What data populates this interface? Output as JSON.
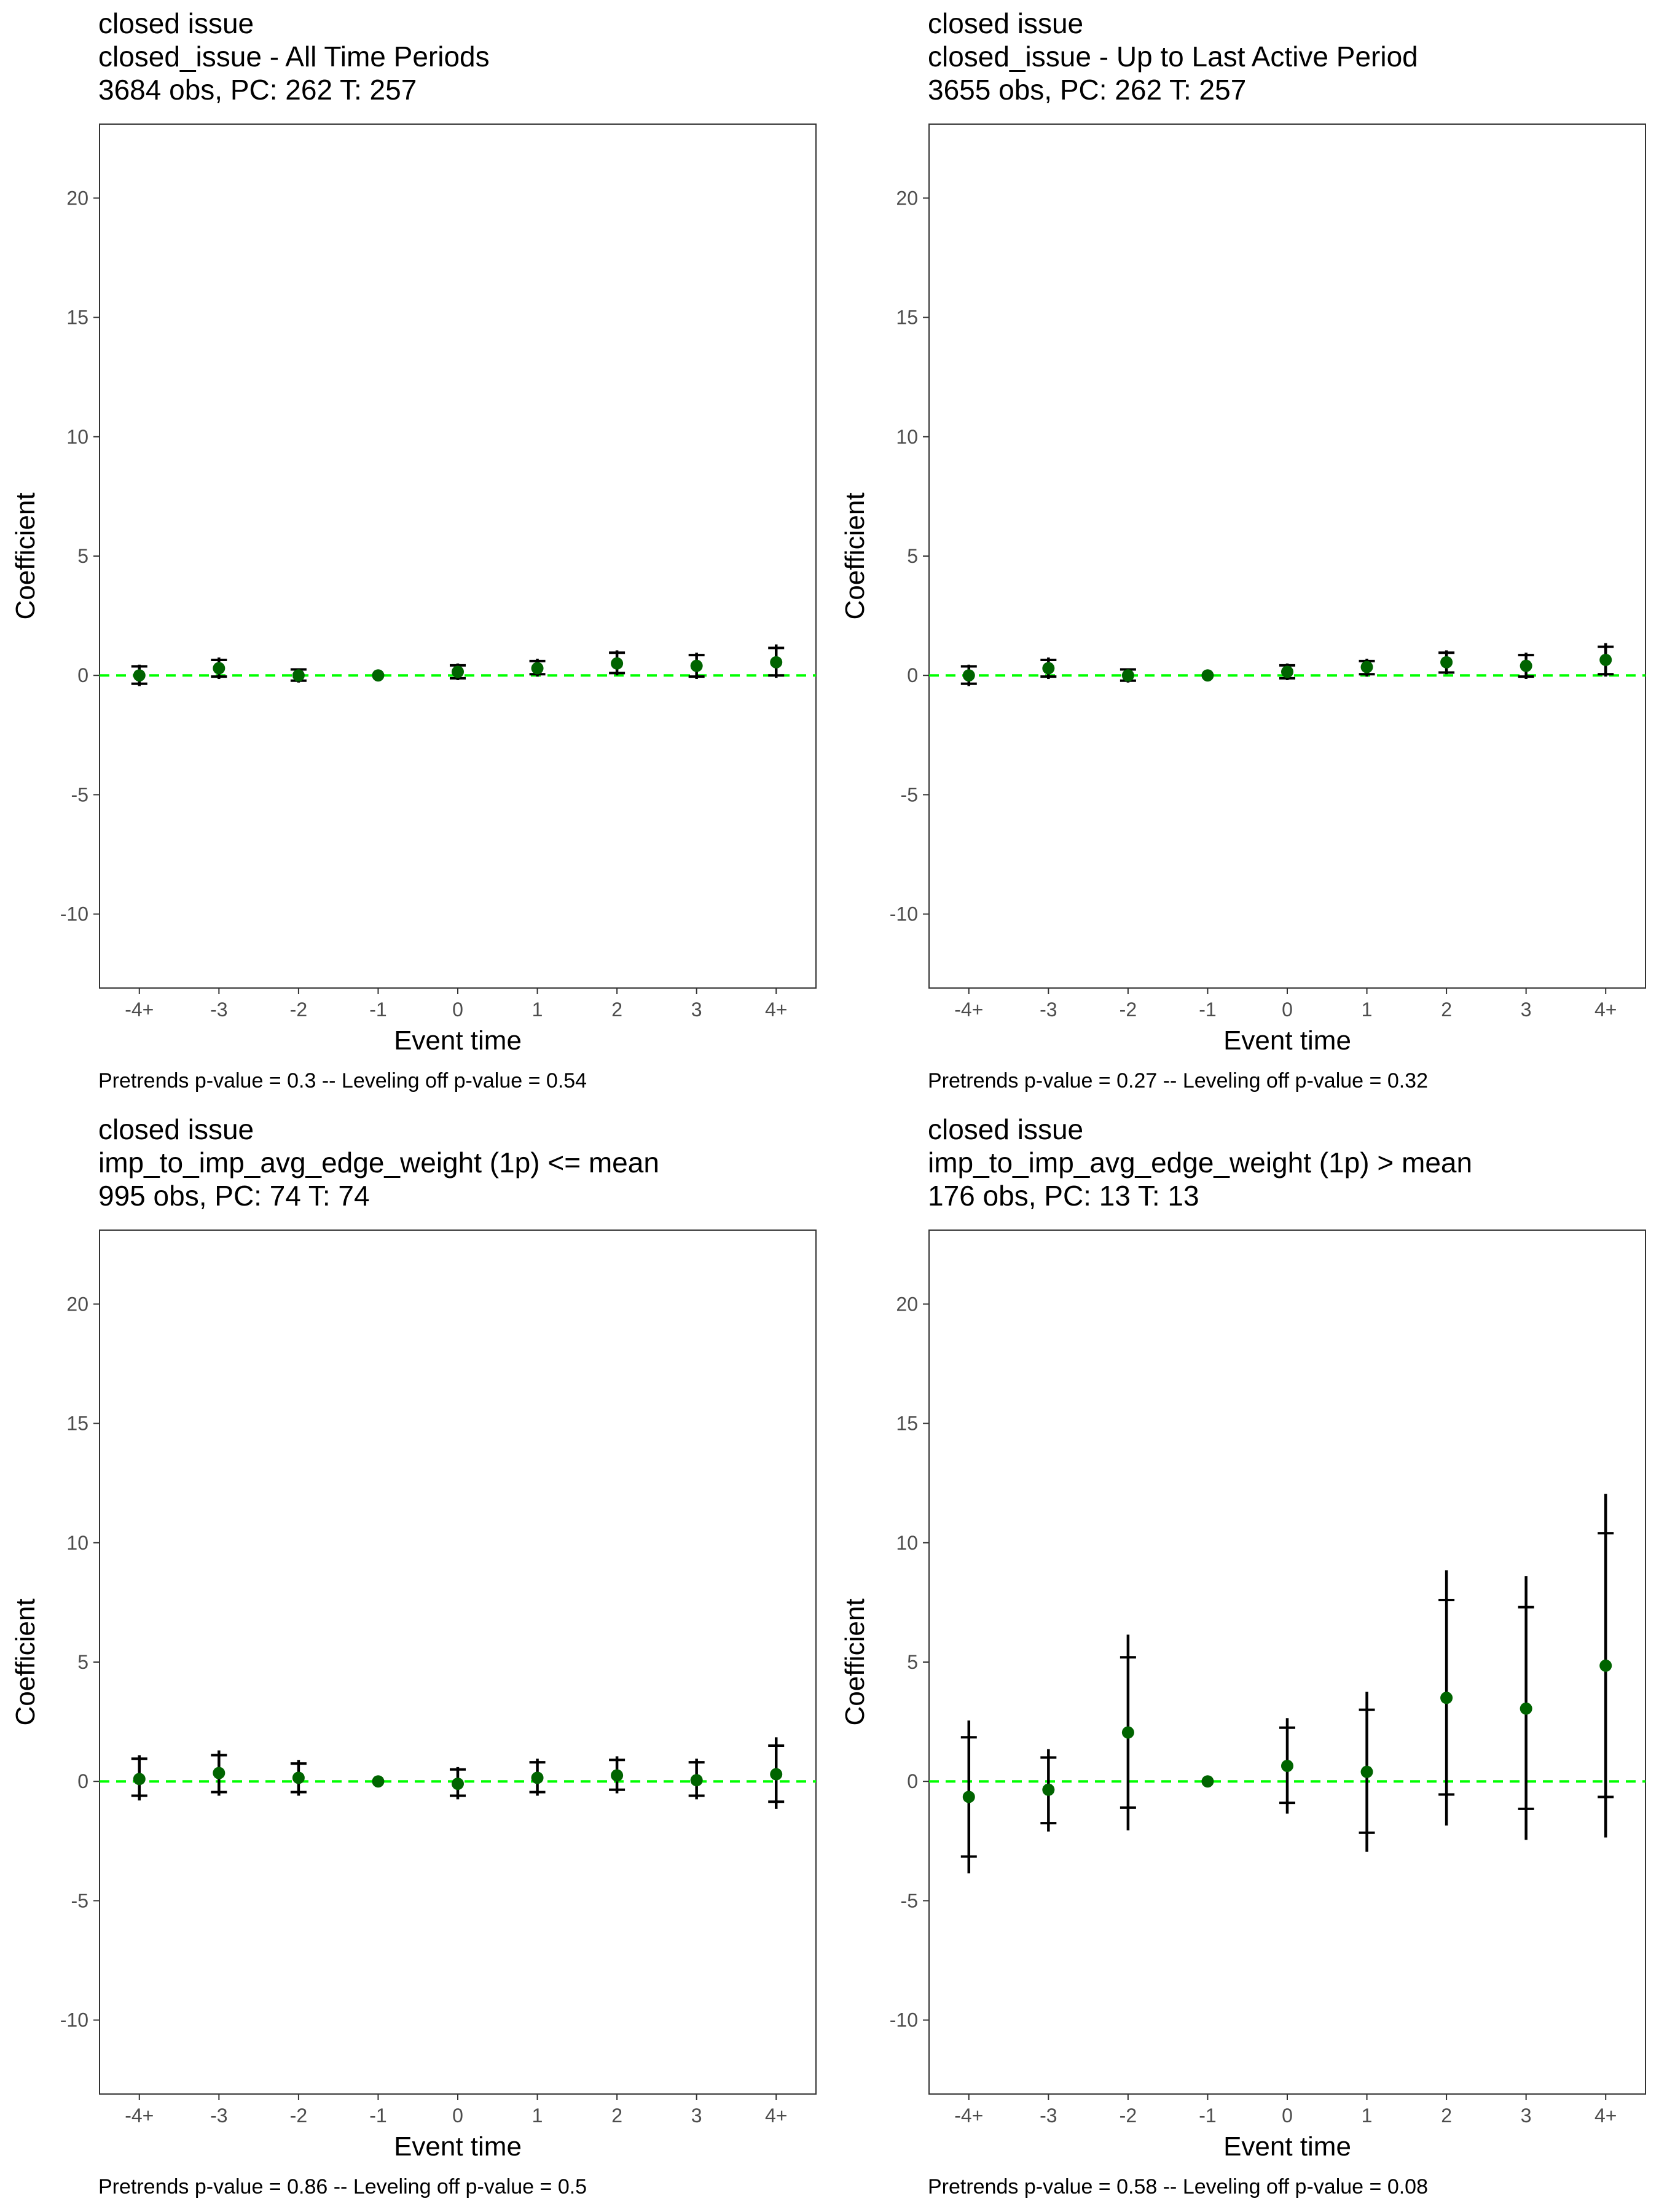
{
  "figure": {
    "colors": {
      "point": "#006400",
      "errorbar": "#000000",
      "zero_line": "#00ff00",
      "panel_border": "#333333",
      "tick_text": "#4d4d4d"
    }
  },
  "chart_data": [
    {
      "type": "scatter",
      "title": "closed issue",
      "subtitle": "closed_issue - All Time Periods",
      "sample_info": "3684 obs, PC: 262 T: 257",
      "xlabel": "Event time",
      "ylabel": "Coefficient",
      "caption": "Pretrends p-value = 0.3 -- Leveling off p-value = 0.54",
      "categories": [
        "-4+",
        "-3",
        "-2",
        "-1",
        "0",
        "1",
        "2",
        "3",
        "4+"
      ],
      "ylim": [
        -13.1,
        23.1
      ],
      "yticks": [
        -10,
        -5,
        0,
        5,
        10,
        15,
        20
      ],
      "ytick_labels": [
        "-10",
        "-5",
        "0",
        "5",
        "10",
        "15",
        "20"
      ],
      "grid": false,
      "reference_line": 0,
      "estimates": [
        0.0,
        0.3,
        0.0,
        0.0,
        0.15,
        0.3,
        0.5,
        0.4,
        0.55
      ],
      "ci95_low": [
        -0.45,
        -0.15,
        -0.3,
        0.0,
        -0.2,
        -0.05,
        0.0,
        -0.15,
        -0.1
      ],
      "ci95_high": [
        0.45,
        0.75,
        0.3,
        0.0,
        0.5,
        0.7,
        1.05,
        0.95,
        1.3
      ],
      "ci90_low": [
        -0.35,
        -0.05,
        -0.22,
        0.0,
        -0.12,
        0.05,
        0.1,
        -0.05,
        0.0
      ],
      "ci90_high": [
        0.38,
        0.65,
        0.25,
        0.0,
        0.42,
        0.6,
        0.95,
        0.85,
        1.15
      ]
    },
    {
      "type": "scatter",
      "title": "closed issue",
      "subtitle": "closed_issue - Up to Last Active Period",
      "sample_info": "3655 obs, PC: 262 T: 257",
      "xlabel": "Event time",
      "ylabel": "Coefficient",
      "caption": "Pretrends p-value = 0.27 -- Leveling off p-value = 0.32",
      "categories": [
        "-4+",
        "-3",
        "-2",
        "-1",
        "0",
        "1",
        "2",
        "3",
        "4+"
      ],
      "ylim": [
        -13.1,
        23.1
      ],
      "yticks": [
        -10,
        -5,
        0,
        5,
        10,
        15,
        20
      ],
      "ytick_labels": [
        "-10",
        "-5",
        "0",
        "5",
        "10",
        "15",
        "20"
      ],
      "grid": false,
      "reference_line": 0,
      "estimates": [
        0.0,
        0.3,
        0.0,
        0.0,
        0.15,
        0.35,
        0.55,
        0.4,
        0.65
      ],
      "ci95_low": [
        -0.45,
        -0.15,
        -0.3,
        0.0,
        -0.2,
        -0.05,
        0.05,
        -0.15,
        -0.05
      ],
      "ci95_high": [
        0.45,
        0.75,
        0.3,
        0.0,
        0.5,
        0.7,
        1.05,
        0.95,
        1.35
      ],
      "ci90_low": [
        -0.35,
        -0.05,
        -0.22,
        0.0,
        -0.12,
        0.05,
        0.12,
        -0.05,
        0.05
      ],
      "ci90_high": [
        0.38,
        0.65,
        0.25,
        0.0,
        0.42,
        0.6,
        0.95,
        0.85,
        1.2
      ]
    },
    {
      "type": "scatter",
      "title": "closed issue",
      "subtitle": "imp_to_imp_avg_edge_weight (1p) <= mean",
      "sample_info": "995 obs, PC: 74 T: 74",
      "xlabel": "Event time",
      "ylabel": "Coefficient",
      "caption": "Pretrends p-value = 0.86 -- Leveling off p-value = 0.5",
      "categories": [
        "-4+",
        "-3",
        "-2",
        "-1",
        "0",
        "1",
        "2",
        "3",
        "4+"
      ],
      "ylim": [
        -13.1,
        23.1
      ],
      "yticks": [
        -10,
        -5,
        0,
        5,
        10,
        15,
        20
      ],
      "ytick_labels": [
        "-10",
        "-5",
        "0",
        "5",
        "10",
        "15",
        "20"
      ],
      "grid": false,
      "reference_line": 0,
      "estimates": [
        0.1,
        0.35,
        0.15,
        0.0,
        -0.1,
        0.15,
        0.25,
        0.05,
        0.3
      ],
      "ci95_low": [
        -0.8,
        -0.6,
        -0.6,
        0.0,
        -0.75,
        -0.6,
        -0.5,
        -0.75,
        -1.15
      ],
      "ci95_high": [
        1.1,
        1.3,
        0.9,
        0.0,
        0.6,
        0.95,
        1.05,
        0.95,
        1.85
      ],
      "ci90_low": [
        -0.6,
        -0.45,
        -0.45,
        0.0,
        -0.6,
        -0.45,
        -0.35,
        -0.6,
        -0.85
      ],
      "ci90_high": [
        0.95,
        1.1,
        0.75,
        0.0,
        0.5,
        0.8,
        0.9,
        0.8,
        1.5
      ]
    },
    {
      "type": "scatter",
      "title": "closed issue",
      "subtitle": "imp_to_imp_avg_edge_weight (1p) > mean",
      "sample_info": "176 obs, PC: 13 T: 13",
      "xlabel": "Event time",
      "ylabel": "Coefficient",
      "caption": "Pretrends p-value = 0.58 -- Leveling off p-value = 0.08",
      "categories": [
        "-4+",
        "-3",
        "-2",
        "-1",
        "0",
        "1",
        "2",
        "3",
        "4+"
      ],
      "ylim": [
        -13.1,
        23.1
      ],
      "yticks": [
        -10,
        -5,
        0,
        5,
        10,
        15,
        20
      ],
      "ytick_labels": [
        "-10",
        "-5",
        "0",
        "5",
        "10",
        "15",
        "20"
      ],
      "grid": false,
      "reference_line": 0,
      "estimates": [
        -0.65,
        -0.35,
        2.05,
        0.0,
        0.65,
        0.4,
        3.5,
        3.05,
        4.85
      ],
      "ci95_low": [
        -3.85,
        -2.1,
        -2.05,
        0.0,
        -1.35,
        -2.95,
        -1.85,
        -2.45,
        -2.35
      ],
      "ci95_high": [
        2.55,
        1.35,
        6.15,
        0.0,
        2.65,
        3.75,
        8.85,
        8.6,
        12.05
      ],
      "ci90_low": [
        -3.15,
        -1.75,
        -1.1,
        0.0,
        -0.9,
        -2.15,
        -0.55,
        -1.15,
        -0.65
      ],
      "ci90_high": [
        1.85,
        1.0,
        5.2,
        0.0,
        2.25,
        3.0,
        7.6,
        7.3,
        10.4
      ]
    }
  ]
}
